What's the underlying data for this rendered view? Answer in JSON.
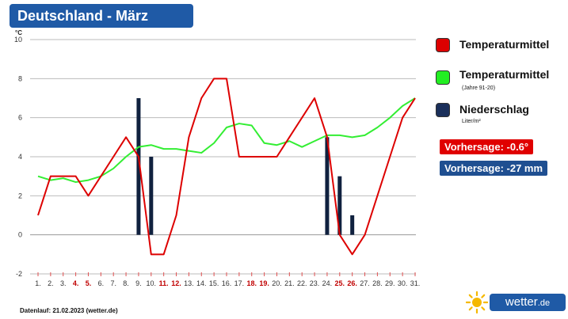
{
  "title": "Deutschland - März",
  "legend": [
    {
      "label": "Temperaturmittel",
      "sub": "",
      "color": "#dd0000"
    },
    {
      "label": "Temperaturmittel",
      "sub": "(Jahre 91-20)",
      "color": "#22ee22"
    },
    {
      "label": "Niederschlag",
      "sub": "Liter/m²",
      "color": "#1a2f5a"
    }
  ],
  "forecast_temp": "Vorhersage: -0.6°",
  "forecast_precip": "Vorhersage: -27 mm",
  "footer": "Datenlauf: 21.02.2023 (wetter.de)",
  "brand": {
    "name": "wetter",
    "domain": ".de"
  },
  "chart_data": {
    "type": "line",
    "ylabel": "°C",
    "ylim": [
      -2,
      10
    ],
    "yticks": [
      -2,
      0,
      2,
      4,
      6,
      8,
      10
    ],
    "categories": [
      "1.",
      "2.",
      "3.",
      "4.",
      "5.",
      "6.",
      "7.",
      "8.",
      "9.",
      "10.",
      "11.",
      "12.",
      "13.",
      "14.",
      "15.",
      "16.",
      "17.",
      "18.",
      "19.",
      "20.",
      "21.",
      "22.",
      "23.",
      "24.",
      "25.",
      "26.",
      "27.",
      "28.",
      "29.",
      "30.",
      "31."
    ],
    "weekend_days": [
      "4.",
      "5.",
      "11.",
      "12.",
      "18.",
      "19.",
      "25.",
      "26."
    ],
    "series": [
      {
        "name": "Temperaturmittel",
        "color": "#dd0000",
        "values": [
          1,
          3,
          3,
          3,
          2,
          3,
          4,
          5,
          4,
          -1,
          -1,
          1,
          5,
          7,
          8,
          8,
          4,
          4,
          4,
          4,
          5,
          6,
          7,
          5,
          0,
          -1,
          0,
          2,
          4,
          6,
          7
        ]
      },
      {
        "name": "Temperaturmittel (Jahre 91-20)",
        "color": "#33ee33",
        "values": [
          3,
          2.8,
          2.9,
          2.7,
          2.8,
          3,
          3.4,
          4,
          4.5,
          4.6,
          4.4,
          4.4,
          4.3,
          4.2,
          4.7,
          5.5,
          5.7,
          5.6,
          4.7,
          4.6,
          4.8,
          4.5,
          4.8,
          5.1,
          5.1,
          5,
          5.1,
          5.5,
          6,
          6.6,
          7
        ]
      },
      {
        "name": "Niederschlag",
        "color": "#10213f",
        "type": "bar",
        "values": [
          0,
          0,
          0,
          0,
          0,
          0,
          0,
          0,
          7,
          4,
          0,
          0,
          0,
          0,
          0,
          0,
          0,
          0,
          0,
          0,
          0,
          0,
          0,
          5,
          3,
          1,
          0,
          0,
          0,
          0,
          0
        ]
      }
    ]
  }
}
